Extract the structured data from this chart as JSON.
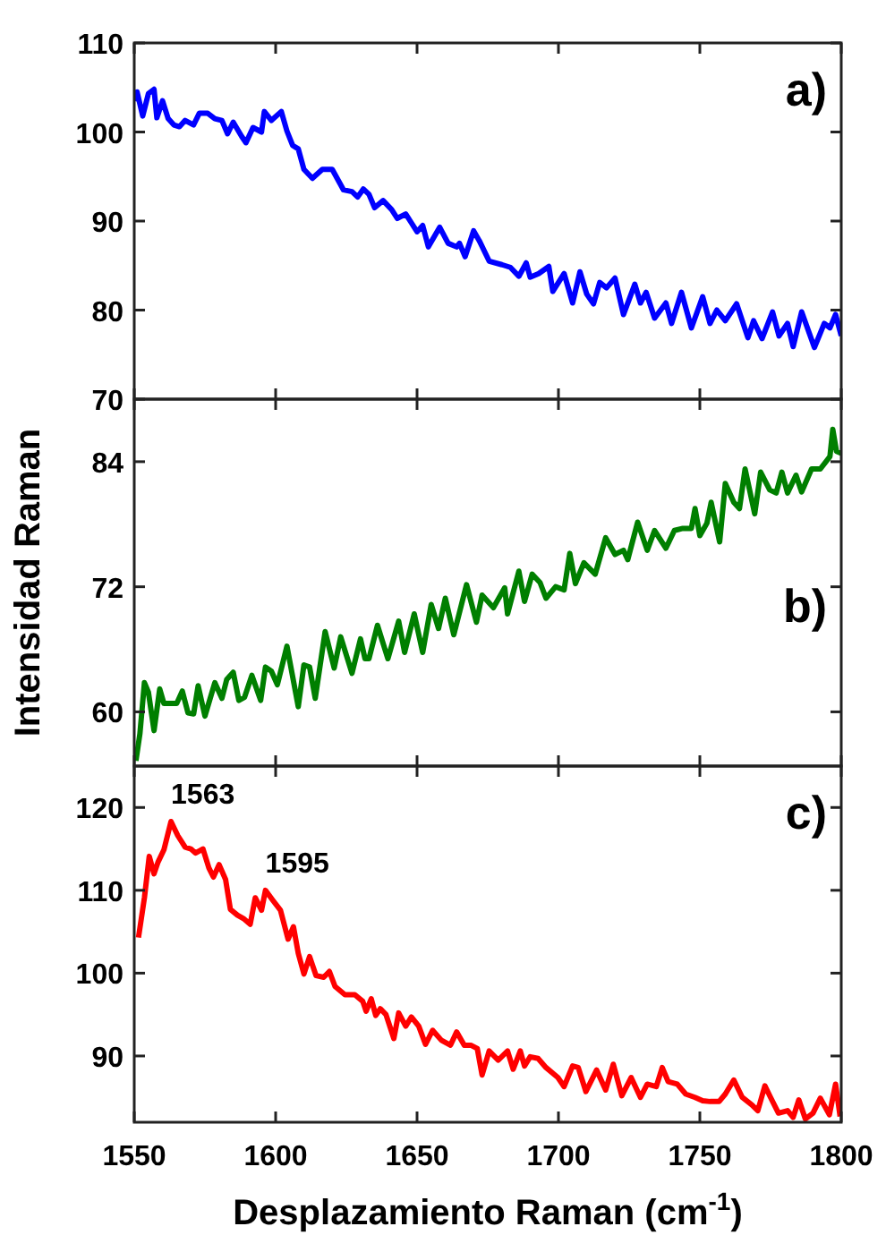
{
  "chart_data": [
    {
      "type": "line",
      "ylabel": "Intensidad Raman",
      "xlim": [
        1550,
        1800
      ],
      "ylim": [
        70,
        110
      ],
      "xticks": [
        1550,
        1600,
        1650,
        1700,
        1750,
        1800
      ],
      "yticks": [
        70,
        80,
        90,
        100,
        110
      ],
      "tick_labels": "y",
      "grid": false,
      "annotations": [
        "a)"
      ],
      "series": [
        {
          "color": "#0000ff",
          "x": [
            1550,
            1551,
            1553,
            1555,
            1557,
            1558,
            1560,
            1562,
            1564,
            1566,
            1568,
            1571,
            1573,
            1576,
            1578.5,
            1581,
            1583,
            1585,
            1588,
            1589.5,
            1592,
            1595,
            1596,
            1598.5,
            1602,
            1604,
            1606,
            1608,
            1610,
            1613,
            1616.5,
            1620,
            1624,
            1627,
            1629,
            1631,
            1633,
            1635,
            1638,
            1641,
            1643,
            1646,
            1648,
            1650,
            1652,
            1654,
            1658,
            1661,
            1664,
            1665,
            1667,
            1670,
            1672,
            1675.5,
            1680,
            1683,
            1686,
            1688.6,
            1690,
            1693,
            1696.6,
            1698,
            1702,
            1705,
            1707.6,
            1710,
            1712.4,
            1714.6,
            1717,
            1720,
            1723,
            1727,
            1729,
            1731,
            1734,
            1738,
            1740,
            1743.5,
            1747,
            1751,
            1753.6,
            1756,
            1759,
            1763,
            1767,
            1769,
            1772,
            1775.7,
            1778,
            1781,
            1783,
            1786,
            1790.5,
            1794,
            1796,
            1798,
            1800
          ],
          "values": [
            103.5,
            104.5,
            101.8,
            104.3,
            104.8,
            101.6,
            103.5,
            101.5,
            100.8,
            100.6,
            101.3,
            100.8,
            102.1,
            102.1,
            101.5,
            101.3,
            99.8,
            101.1,
            99.5,
            98.8,
            100.5,
            100,
            102.3,
            101.3,
            102.3,
            100.1,
            98.5,
            98.1,
            95.8,
            94.8,
            95.8,
            95.8,
            93.5,
            93.3,
            92.7,
            93.6,
            93,
            91.5,
            92.3,
            91.3,
            90.3,
            90.8,
            89.8,
            88.8,
            89.5,
            87.1,
            89.3,
            87.5,
            87.1,
            87.5,
            86,
            88.9,
            87.8,
            85.5,
            85.1,
            84.8,
            83.8,
            85.3,
            83.7,
            84.1,
            84.9,
            82.1,
            84.1,
            80.8,
            84.3,
            81.8,
            80.7,
            83.1,
            82.5,
            83.6,
            79.5,
            82.9,
            80.8,
            82,
            79.1,
            80.8,
            78.5,
            82,
            78,
            81.5,
            78.5,
            80,
            78.8,
            80.7,
            76.9,
            78.8,
            76.8,
            79.8,
            77.1,
            78.5,
            75.9,
            79.8,
            75.8,
            78.5,
            78,
            79.5,
            77.1
          ]
        }
      ]
    },
    {
      "type": "line",
      "xlim": [
        1550,
        1800
      ],
      "ylim": [
        54.8,
        90
      ],
      "xticks": [
        1550,
        1600,
        1650,
        1700,
        1750,
        1800
      ],
      "yticks": [
        60,
        72,
        84
      ],
      "tick_labels": "y",
      "grid": false,
      "annotations": [
        "b)"
      ],
      "series": [
        {
          "color": "#007f00",
          "x": [
            1550.6,
            1552,
            1553.6,
            1555,
            1557,
            1559,
            1560.5,
            1562.7,
            1565,
            1567,
            1569,
            1571,
            1572.6,
            1575,
            1578.5,
            1581,
            1582.7,
            1585,
            1587,
            1589,
            1591.6,
            1594.7,
            1596.4,
            1598.5,
            1600.6,
            1604,
            1608,
            1610,
            1612,
            1614,
            1617.5,
            1620.7,
            1623,
            1627,
            1630,
            1631.6,
            1633,
            1636,
            1639.7,
            1643.5,
            1645.6,
            1649,
            1652,
            1655,
            1657.6,
            1660,
            1663,
            1667.5,
            1671,
            1673,
            1677,
            1681,
            1682,
            1686,
            1688,
            1690.7,
            1693.5,
            1695.6,
            1699,
            1702,
            1704,
            1706,
            1709,
            1713,
            1716.7,
            1720,
            1723,
            1724.5,
            1728,
            1731.4,
            1734,
            1738,
            1741,
            1744,
            1747,
            1748.3,
            1750,
            1752.5,
            1754,
            1757,
            1759,
            1762,
            1764,
            1766,
            1769.4,
            1771.5,
            1774.7,
            1777,
            1779,
            1781,
            1784,
            1786,
            1789.5,
            1792.6,
            1796,
            1797,
            1798.3,
            1800
          ],
          "values": [
            55.3,
            57.9,
            62.8,
            61.9,
            58.2,
            62.2,
            60.8,
            60.8,
            60.8,
            62,
            59.9,
            59.8,
            62.5,
            59.6,
            62.8,
            61.3,
            63.1,
            63.8,
            61.1,
            61.4,
            63.5,
            61.1,
            64.3,
            63.9,
            62.6,
            66.3,
            60.5,
            64.5,
            64.3,
            61.3,
            67.7,
            64.2,
            67.2,
            63.7,
            67,
            65.1,
            65.1,
            68.3,
            65.1,
            68.7,
            65.7,
            69.4,
            65.7,
            70.3,
            68,
            70.9,
            67.4,
            72.2,
            68.6,
            71.2,
            70,
            71.9,
            69.4,
            73.5,
            70.6,
            73.2,
            72.4,
            70.9,
            72,
            71.7,
            75.2,
            72.3,
            74.3,
            73.2,
            76.7,
            75.1,
            75.5,
            74.6,
            78.2,
            75.5,
            77.4,
            75.7,
            77.4,
            77.6,
            77.6,
            79.5,
            76.9,
            78.1,
            80.1,
            76.3,
            81.9,
            80.1,
            79.5,
            83.3,
            79,
            83,
            81.3,
            81,
            83,
            81,
            82.7,
            81.1,
            83.3,
            83.3,
            84.5,
            87.1,
            85,
            84.8
          ]
        }
      ]
    },
    {
      "type": "line",
      "xlabel": "Desplazamiento Raman (cm$^{-1}$)",
      "xlim": [
        1550,
        1800
      ],
      "ylim": [
        82,
        125
      ],
      "xticks": [
        1550,
        1600,
        1650,
        1700,
        1750,
        1800
      ],
      "yticks": [
        90,
        100,
        110,
        120
      ],
      "grid": false,
      "annotations": [
        "c)",
        {
          "text": "1563",
          "x": 1563,
          "y": 118.3
        },
        {
          "text": "1595",
          "x": 1596.4,
          "y": 110
        }
      ],
      "series": [
        {
          "color": "#ff0000",
          "x": [
            1551.5,
            1553.6,
            1555.3,
            1557,
            1558.4,
            1560.5,
            1563,
            1565.4,
            1568,
            1570,
            1571.7,
            1574.3,
            1576.4,
            1578,
            1580,
            1582.3,
            1584,
            1586.5,
            1588.6,
            1591,
            1592.8,
            1595,
            1596.4,
            1599,
            1601.7,
            1604.4,
            1606.3,
            1608,
            1610,
            1612,
            1614.3,
            1617,
            1619,
            1621,
            1624.5,
            1628,
            1630.8,
            1632,
            1633.8,
            1635.4,
            1637,
            1639,
            1641.8,
            1643.5,
            1646,
            1648,
            1650.6,
            1653,
            1655.5,
            1658.6,
            1661.8,
            1664,
            1666.7,
            1669,
            1671.3,
            1673,
            1675.5,
            1678.7,
            1682,
            1684,
            1686.5,
            1688,
            1690,
            1692.8,
            1695.6,
            1699.8,
            1702,
            1705,
            1707,
            1709.7,
            1713.5,
            1716.7,
            1719.4,
            1722.4,
            1725.7,
            1729,
            1731.4,
            1734.6,
            1736.7,
            1738.8,
            1742,
            1745,
            1748.3,
            1751,
            1753.6,
            1756.8,
            1759,
            1762,
            1765,
            1768.4,
            1770.5,
            1773,
            1775,
            1777.8,
            1781,
            1783,
            1785,
            1787.3,
            1790,
            1792.6,
            1795.8,
            1798,
            1799.6
          ],
          "values": [
            104.3,
            109.1,
            114.1,
            112,
            113.4,
            114.9,
            118.3,
            116.6,
            115.2,
            115,
            114.5,
            115,
            112.7,
            111.6,
            113.1,
            111.3,
            107.7,
            107,
            106.6,
            105.9,
            109.1,
            107.6,
            110,
            108.8,
            107.6,
            104.1,
            105.6,
            102.4,
            99.9,
            102,
            99.7,
            99.5,
            100.2,
            98.4,
            97.4,
            97.4,
            96.6,
            95.4,
            96.9,
            94.9,
            95.7,
            95,
            92.1,
            95.2,
            93.6,
            94.7,
            93.6,
            91.4,
            93.1,
            91.9,
            91.3,
            92.9,
            91.3,
            91.3,
            90.9,
            87.7,
            90.6,
            89.5,
            90.6,
            88.4,
            90.6,
            88.8,
            89.9,
            89.7,
            88.6,
            87.4,
            86.3,
            88.8,
            88.6,
            85.7,
            88.3,
            85.9,
            89,
            85.2,
            87.4,
            85,
            86.6,
            86.3,
            88.6,
            86.9,
            86.6,
            85.4,
            85,
            84.6,
            84.5,
            84.5,
            85.4,
            87.1,
            85,
            84.1,
            83.4,
            86.4,
            85,
            83.1,
            83.4,
            82.6,
            84.7,
            82.4,
            83.1,
            84.9,
            82.9,
            86.6,
            82.7
          ]
        }
      ]
    }
  ]
}
